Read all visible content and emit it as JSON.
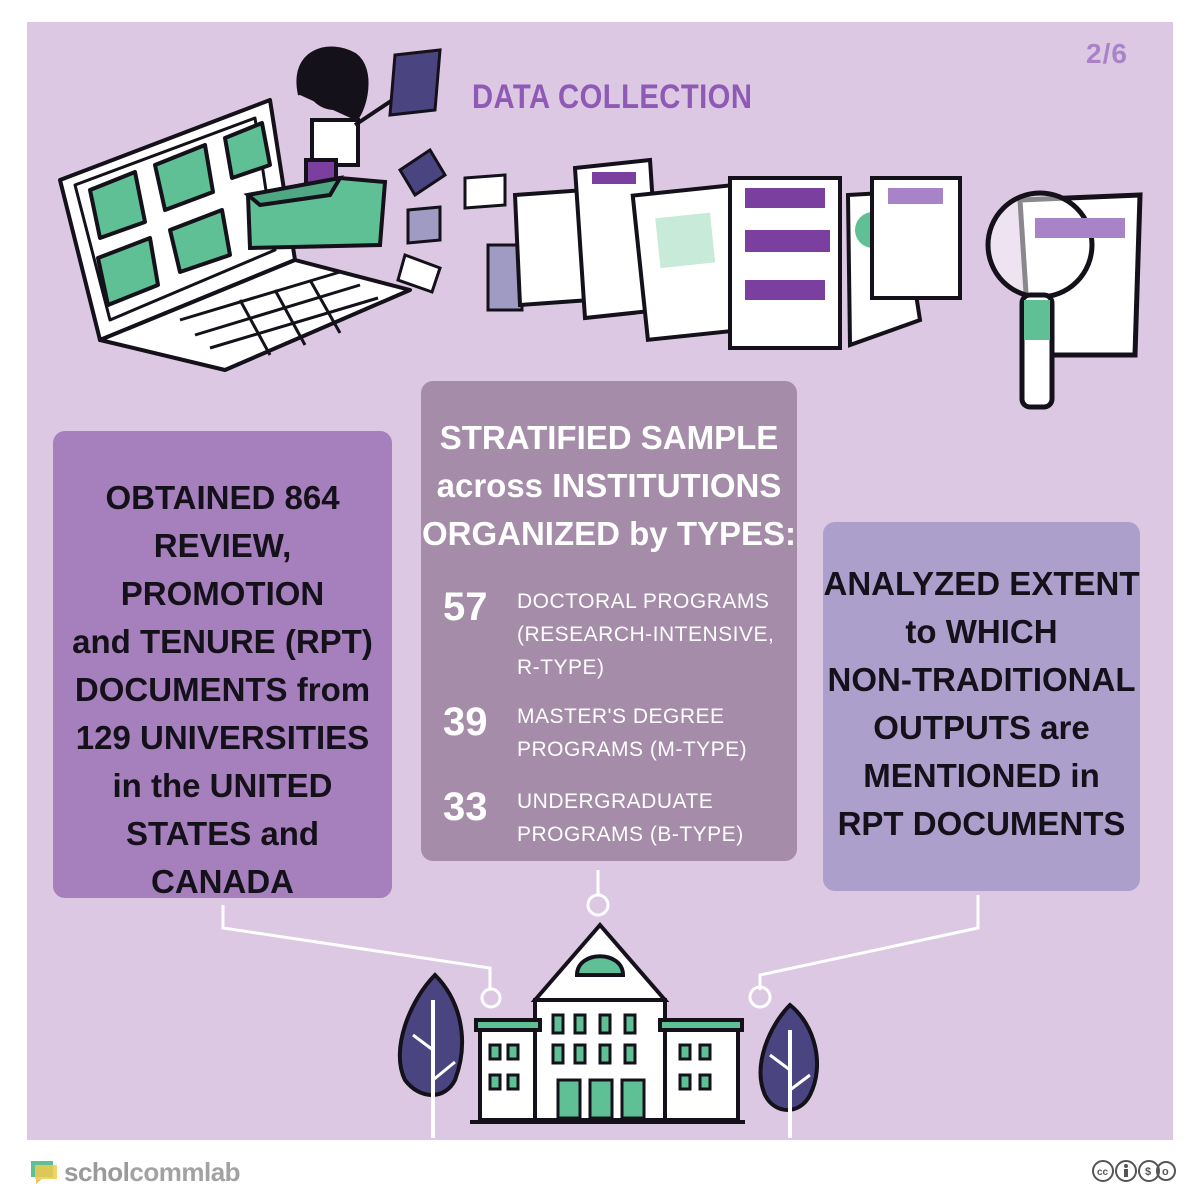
{
  "header": {
    "page_indicator": "2/6",
    "title": "DATA COLLECTION"
  },
  "left_box": {
    "lines": [
      "OBTAINED 864",
      "REVIEW, PROMOTION",
      "and TENURE (RPT)",
      "DOCUMENTS from",
      "129 UNIVERSITIES",
      "in the UNITED",
      "STATES and",
      "CANADA"
    ]
  },
  "middle_box": {
    "heading_lines": [
      "STRATIFIED SAMPLE",
      "across INSTITUTIONS",
      "ORGANIZED by TYPES:"
    ],
    "stats": [
      {
        "number": "57",
        "label_lines": [
          "DOCTORAL PROGRAMS",
          "(RESEARCH-INTENSIVE,",
          "R-TYPE)"
        ]
      },
      {
        "number": "39",
        "label_lines": [
          "MASTER'S DEGREE",
          "PROGRAMS (M-TYPE)"
        ]
      },
      {
        "number": "33",
        "label_lines": [
          "UNDERGRADUATE",
          "PROGRAMS (B-TYPE)"
        ]
      }
    ]
  },
  "right_box": {
    "lines": [
      "ANALYZED EXTENT",
      "to WHICH",
      "NON-TRADITIONAL",
      "OUTPUTS are",
      "MENTIONED in",
      "RPT DOCUMENTS"
    ]
  },
  "footer": {
    "logo_light": "schol",
    "logo_strong": "commlab"
  },
  "colors": {
    "background": "#dcc8e2",
    "left_box": "#a67fbd",
    "middle_box": "#a58ca9",
    "right_box": "#ac9fcb",
    "accent_green": "#5fbf95",
    "accent_purple": "#7b3fa0",
    "dark_navy": "#4a4580"
  }
}
